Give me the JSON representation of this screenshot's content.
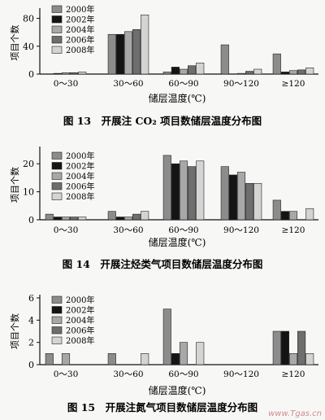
{
  "figures": [
    {
      "caption": "图 13　开展注 CO₂ 项目数储层温度分布图"
    },
    {
      "caption": "图 14　开展注烃类气项目数储层温度分布图"
    },
    {
      "caption": "图 15　开展注氮气项目数储层温度分布图"
    }
  ],
  "watermark": "www.Tgas.cn",
  "chart_data": [
    {
      "type": "bar",
      "ylabel": "项目个数",
      "xlabel": "储层温度(℃)",
      "ylim": [
        0,
        90
      ],
      "yticks": [
        0,
        40,
        80
      ],
      "categories": [
        "0～30",
        "30～60",
        "60～90",
        "90～120",
        "≥120"
      ],
      "series": [
        {
          "name": "2000年",
          "color": "#8c8c8c",
          "values": [
            0,
            57,
            3,
            42,
            29
          ]
        },
        {
          "name": "2002年",
          "color": "#141414",
          "values": [
            1,
            57,
            10,
            0,
            3
          ]
        },
        {
          "name": "2004年",
          "color": "#a8a8a8",
          "values": [
            2,
            61,
            7,
            1,
            5
          ]
        },
        {
          "name": "2006年",
          "color": "#6e6e6e",
          "values": [
            2,
            64,
            12,
            4,
            6
          ]
        },
        {
          "name": "2008年",
          "color": "#d4d4d4",
          "values": [
            3,
            85,
            16,
            7,
            9
          ]
        }
      ],
      "legend": "top-left"
    },
    {
      "type": "bar",
      "ylabel": "项目个数",
      "xlabel": "储层温度(℃)",
      "ylim": [
        0,
        25
      ],
      "yticks": [
        0,
        10,
        20
      ],
      "categories": [
        "0～30",
        "30～60",
        "60～90",
        "90～120",
        "≥120"
      ],
      "series": [
        {
          "name": "2000年",
          "color": "#8c8c8c",
          "values": [
            2,
            3,
            23,
            19,
            7
          ]
        },
        {
          "name": "2002年",
          "color": "#141414",
          "values": [
            1,
            1,
            20,
            16,
            3
          ]
        },
        {
          "name": "2004年",
          "color": "#a8a8a8",
          "values": [
            1,
            1,
            21,
            17,
            3
          ]
        },
        {
          "name": "2006年",
          "color": "#6e6e6e",
          "values": [
            1,
            2,
            19,
            13,
            0
          ]
        },
        {
          "name": "2008年",
          "color": "#d4d4d4",
          "values": [
            1,
            3,
            21,
            13,
            4
          ]
        }
      ],
      "legend": "top-left"
    },
    {
      "type": "bar",
      "ylabel": "项目个数",
      "xlabel": "储层温度(℃)",
      "ylim": [
        0,
        6
      ],
      "yticks": [
        0,
        2,
        4,
        6
      ],
      "categories": [
        "0～30",
        "30～60",
        "60～90",
        "90～120",
        "≥120"
      ],
      "series": [
        {
          "name": "2000年",
          "color": "#8c8c8c",
          "values": [
            1,
            1,
            5,
            0,
            3
          ]
        },
        {
          "name": "2002年",
          "color": "#141414",
          "values": [
            0,
            0,
            1,
            0,
            3
          ]
        },
        {
          "name": "2004年",
          "color": "#a8a8a8",
          "values": [
            1,
            0,
            2,
            0,
            1
          ]
        },
        {
          "name": "2006年",
          "color": "#6e6e6e",
          "values": [
            0,
            0,
            0,
            0,
            3
          ]
        },
        {
          "name": "2008年",
          "color": "#d4d4d4",
          "values": [
            0,
            1,
            2,
            0,
            1
          ]
        }
      ],
      "legend": "top-left"
    }
  ]
}
